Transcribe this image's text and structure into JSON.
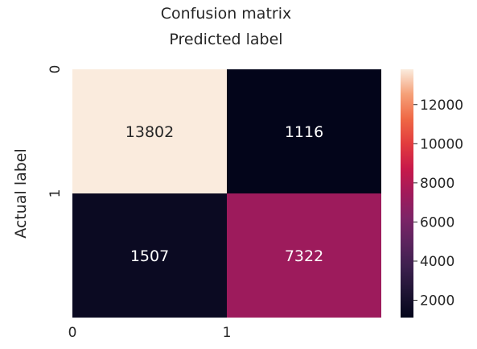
{
  "chart_data": {
    "type": "heatmap",
    "title": "Confusion matrix",
    "xlabel": "Predicted label",
    "ylabel": "Actual label",
    "x_categories": [
      "0",
      "1"
    ],
    "y_categories": [
      "0",
      "1"
    ],
    "values": [
      [
        13802,
        1116
      ],
      [
        1507,
        7322
      ]
    ],
    "colorbar": {
      "colormap": "rocket",
      "range": [
        1116,
        13802
      ],
      "ticks": [
        2000,
        4000,
        6000,
        8000,
        10000,
        12000
      ],
      "tick_labels": [
        "2000",
        "4000",
        "6000",
        "8000",
        "10000",
        "12000"
      ]
    },
    "xlabel_position": "top",
    "grid": false
  }
}
